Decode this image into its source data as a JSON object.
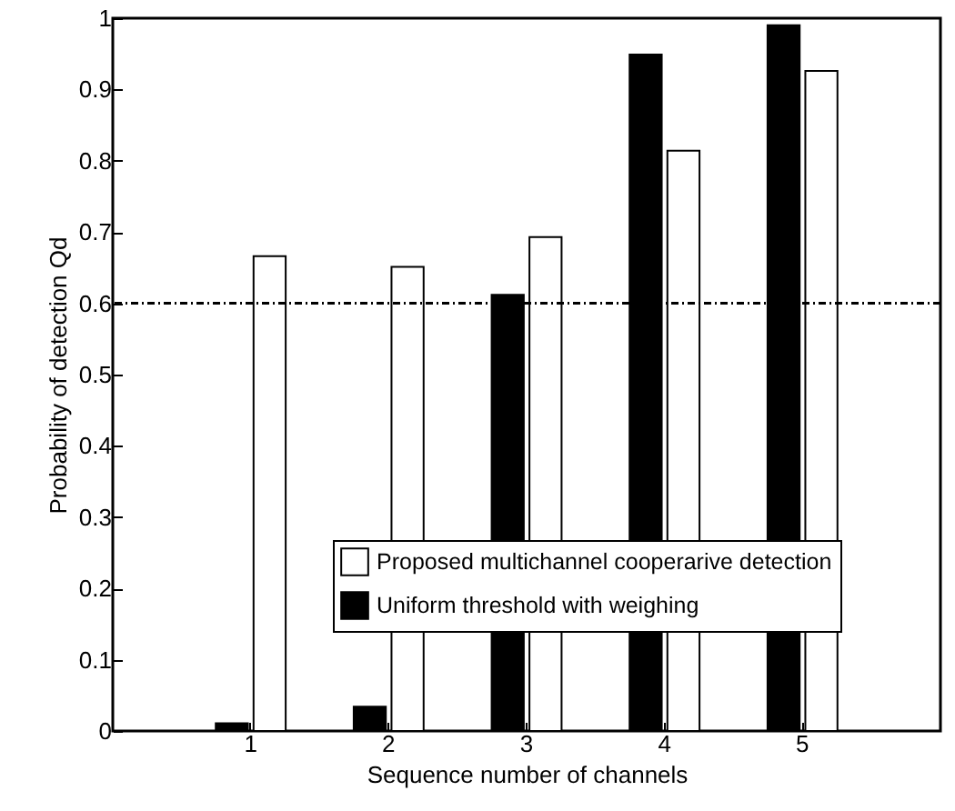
{
  "chart_data": {
    "type": "bar",
    "xlabel": "Sequence number of channels",
    "ylabel": "Probability of detection Qd",
    "categories": [
      "1",
      "2",
      "3",
      "4",
      "5"
    ],
    "series": [
      {
        "name": "Proposed multichannel cooperarive detection",
        "color": "#ffffff",
        "values": [
          0.666,
          0.651,
          0.693,
          0.814,
          0.926
        ]
      },
      {
        "name": "Uniform threshold with weighing",
        "color": "#000000",
        "values": [
          0.011,
          0.034,
          0.612,
          0.949,
          0.99
        ]
      }
    ],
    "ylim": [
      0,
      1
    ],
    "yticks": [
      0,
      0.1,
      0.2,
      0.3,
      0.4,
      0.5,
      0.6,
      0.7,
      0.8,
      0.9,
      1
    ],
    "ref_lines": [
      {
        "axis": "y",
        "value": 0.6,
        "line_style": "dotted"
      }
    ],
    "legend": "bottom right",
    "grid": false
  }
}
